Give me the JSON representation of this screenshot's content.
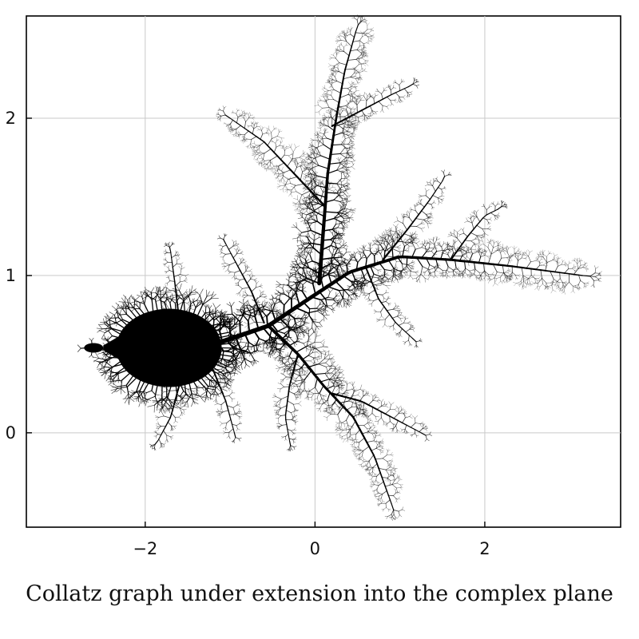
{
  "caption": "Collatz graph under extension into the complex plane",
  "chart_data": {
    "type": "fractal",
    "xlim": [
      -3.4,
      3.6
    ],
    "ylim": [
      -0.6,
      2.65
    ],
    "xticks": [
      {
        "value": -2,
        "label": "−2"
      },
      {
        "value": 0,
        "label": "0"
      },
      {
        "value": 2,
        "label": "2"
      }
    ],
    "yticks": [
      {
        "value": 0,
        "label": "0"
      },
      {
        "value": 1,
        "label": "1"
      },
      {
        "value": 2,
        "label": "2"
      }
    ],
    "grid": true,
    "colors": {
      "set": "#000000",
      "background": "#ffffff",
      "grid": "#c9c9c9"
    }
  }
}
